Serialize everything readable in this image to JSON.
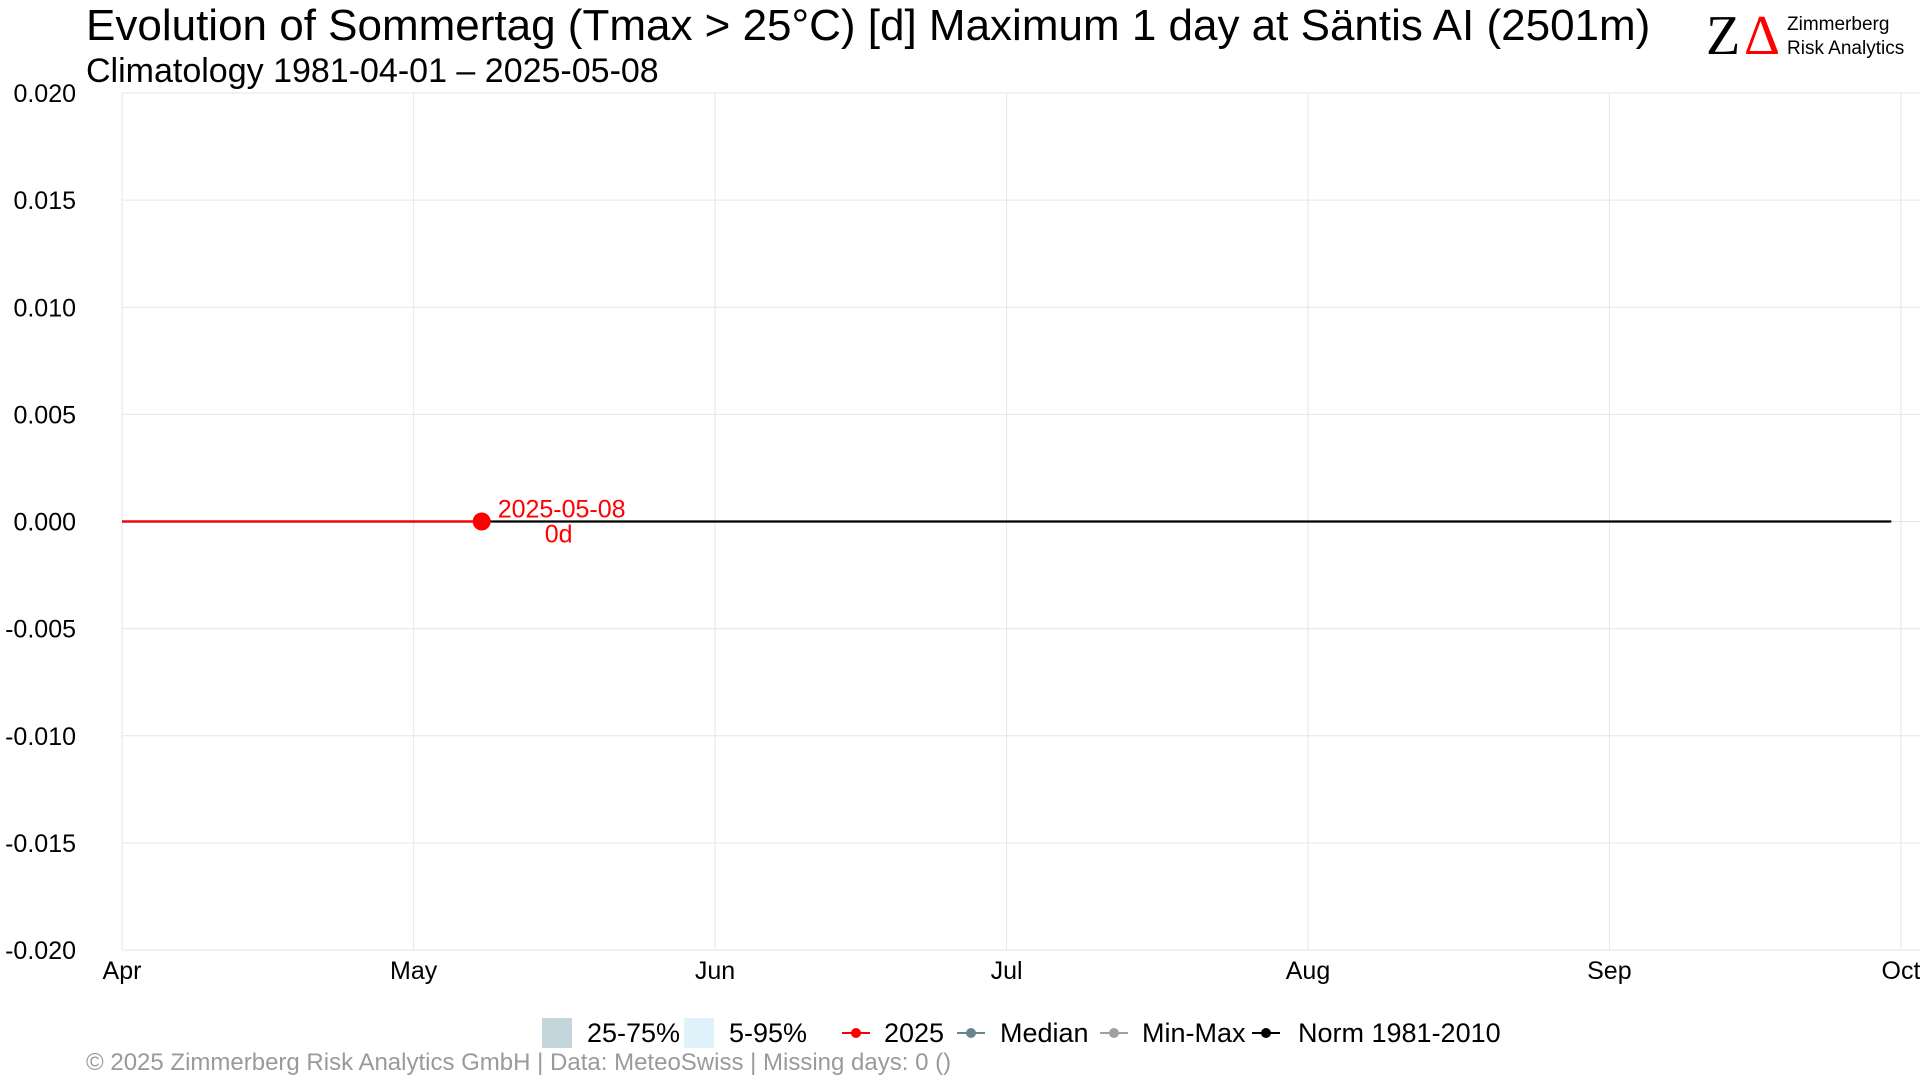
{
  "header": {
    "title": "Evolution of Sommertag (Tmax > 25°C) [d] Maximum 1 day at Säntis  AI (2501m)",
    "subtitle": "Climatology 1981-04-01 – 2025-05-08"
  },
  "logo": {
    "mark_z": "Z",
    "mark_delta": "Δ",
    "line1": "Zimmerberg",
    "line2": "Risk Analytics"
  },
  "footer": {
    "text": "©  2025 Zimmerberg Risk Analytics GmbH | Data: MeteoSwiss | Missing days: 0 ()"
  },
  "legend": {
    "items": [
      {
        "label": "25-75%",
        "kind": "box",
        "color": "#c4d5dc"
      },
      {
        "label": "5-95%",
        "kind": "box",
        "color": "#dff2f9"
      },
      {
        "label": "2025",
        "kind": "line",
        "color": "#ff0000"
      },
      {
        "label": "Median",
        "kind": "line",
        "color": "#6b8590"
      },
      {
        "label": "Min-Max",
        "kind": "line",
        "color": "#a0a0a0"
      },
      {
        "label": "Norm 1981-2010",
        "kind": "line",
        "color": "#000000"
      }
    ]
  },
  "colors": {
    "current_year": "#ff0000",
    "norm": "#000000",
    "grid": "#e6e6e6"
  },
  "chart_data": {
    "type": "line",
    "title": "Evolution of Sommertag (Tmax > 25°C) [d] Maximum 1 day at Säntis  AI (2501m)",
    "subtitle": "Climatology 1981-04-01 – 2025-05-08",
    "xlabel": "",
    "ylabel": "",
    "x_ticks": [
      {
        "label": "Apr",
        "date": "04-01"
      },
      {
        "label": "May",
        "date": "05-01"
      },
      {
        "label": "Jun",
        "date": "06-01"
      },
      {
        "label": "Jul",
        "date": "07-01"
      },
      {
        "label": "Aug",
        "date": "08-01"
      },
      {
        "label": "Sep",
        "date": "09-01"
      },
      {
        "label": "Oct",
        "date": "10-01"
      }
    ],
    "ylim": [
      -0.02,
      0.02
    ],
    "y_ticks": [
      "-0.020",
      "-0.015",
      "-0.010",
      "-0.005",
      "0.000",
      "0.005",
      "0.010",
      "0.015",
      "0.020"
    ],
    "grid": true,
    "legend_position": "bottom",
    "series": [
      {
        "name": "Norm 1981-2010",
        "color": "#000000",
        "x": [
          "04-01",
          "09-30"
        ],
        "y": [
          0,
          0
        ]
      },
      {
        "name": "2025",
        "color": "#ff0000",
        "x": [
          "04-01",
          "05-08"
        ],
        "y": [
          0,
          0
        ]
      }
    ],
    "annotations": [
      {
        "x": "05-08",
        "y": 0,
        "date_text": "2025-05-08",
        "value_text": "0d",
        "color": "#ff0000"
      }
    ]
  }
}
